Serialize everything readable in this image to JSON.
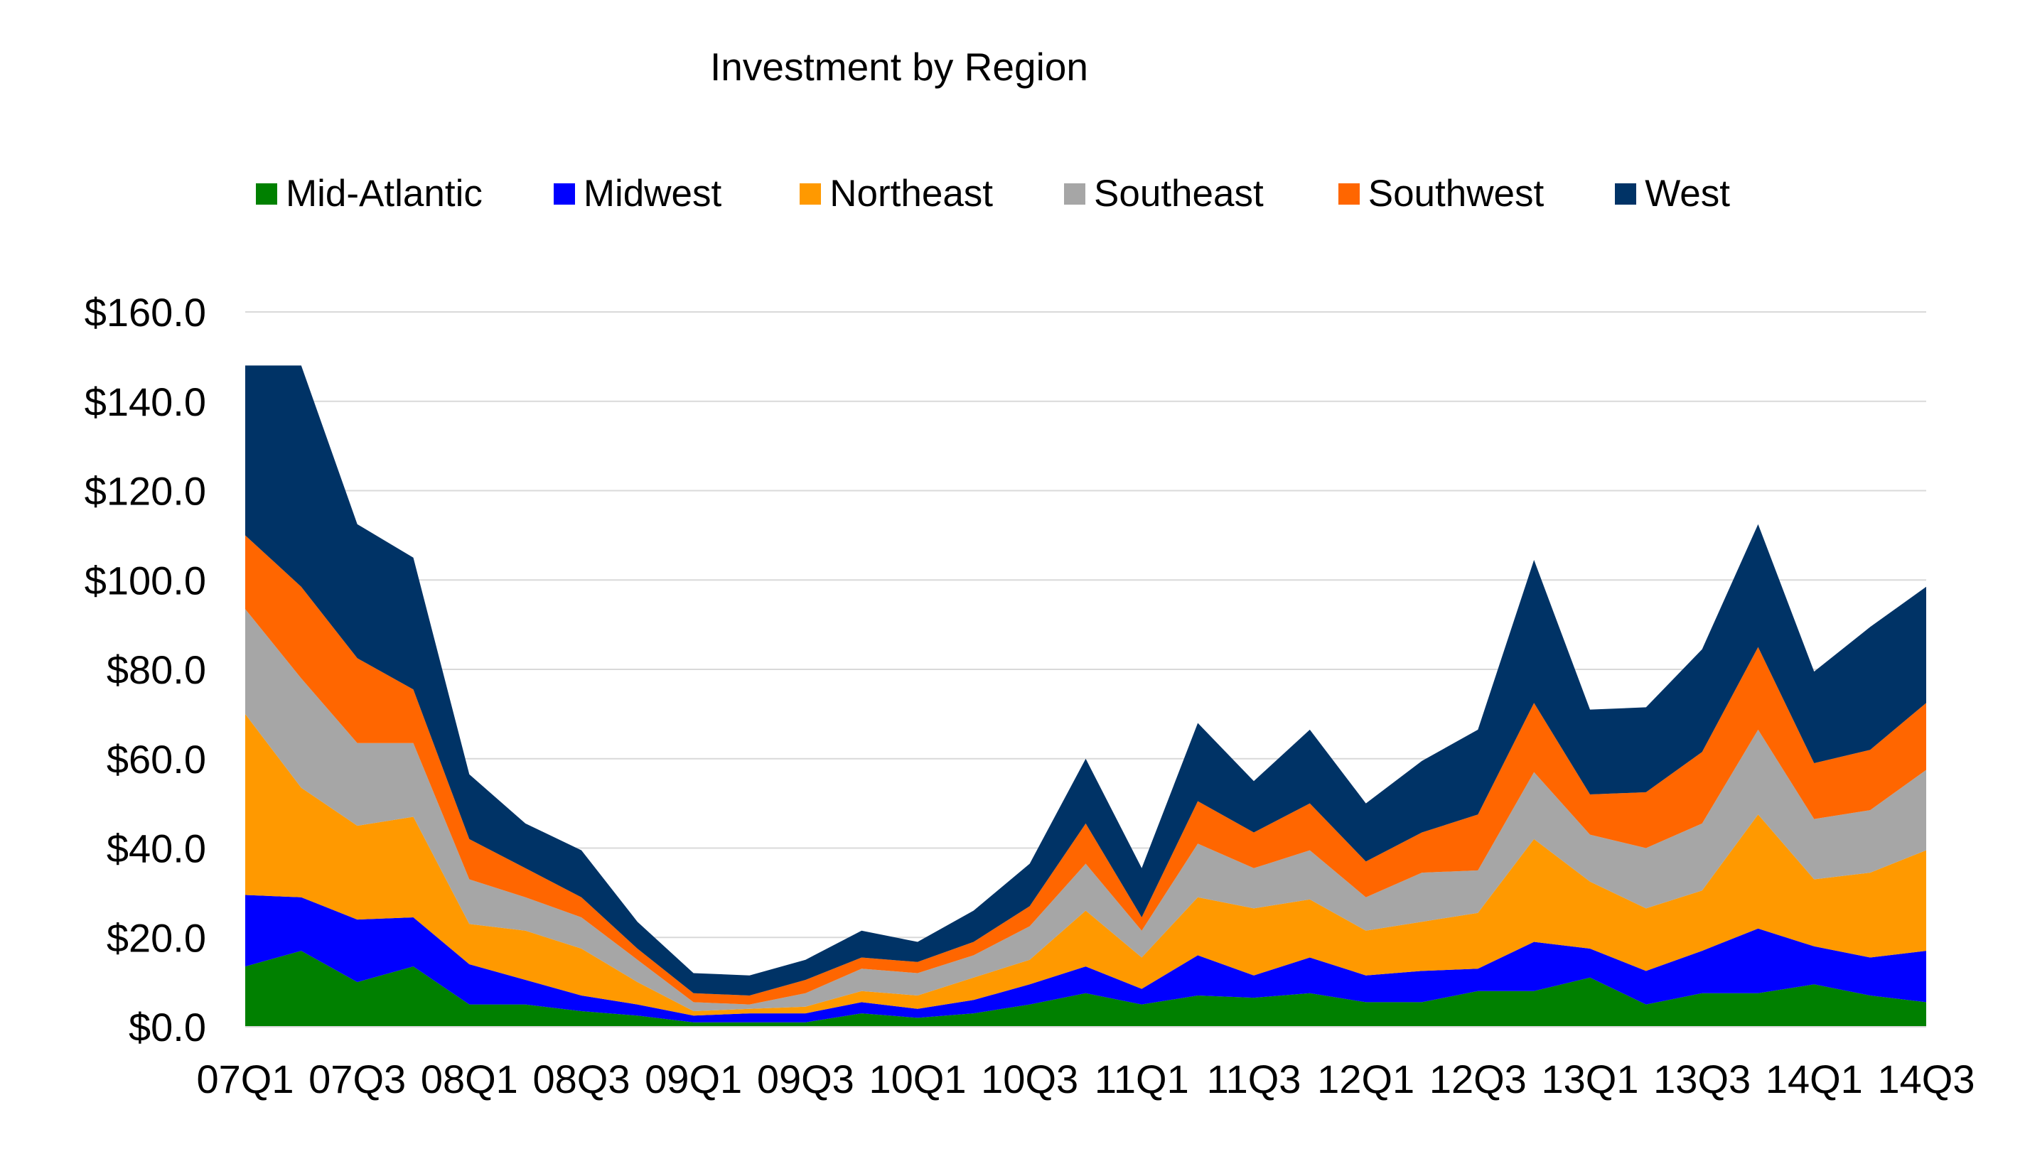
{
  "chart_data": {
    "type": "area",
    "stacked": true,
    "title": "Investment by Region",
    "xlabel": "",
    "ylabel": "",
    "ylim": [
      0,
      160
    ],
    "yticks": [
      "$0.0",
      "$20.0",
      "$40.0",
      "$60.0",
      "$80.0",
      "$100.0",
      "$120.0",
      "$140.0",
      "$160.0"
    ],
    "ytick_values": [
      0,
      20,
      40,
      60,
      80,
      100,
      120,
      140,
      160
    ],
    "grid": true,
    "legend_position": "top",
    "categories": [
      "07Q1",
      "07Q2",
      "07Q3",
      "07Q4",
      "08Q1",
      "08Q2",
      "08Q3",
      "08Q4",
      "09Q1",
      "09Q2",
      "09Q3",
      "09Q4",
      "10Q1",
      "10Q2",
      "10Q3",
      "10Q4",
      "11Q1",
      "11Q2",
      "11Q3",
      "11Q4",
      "12Q1",
      "12Q2",
      "12Q3",
      "12Q4",
      "13Q1",
      "13Q2",
      "13Q3",
      "13Q4",
      "14Q1",
      "14Q2",
      "14Q3"
    ],
    "tick_labels": [
      "07Q1",
      "07Q3",
      "08Q1",
      "08Q3",
      "09Q1",
      "09Q3",
      "10Q1",
      "10Q3",
      "11Q1",
      "11Q3",
      "12Q1",
      "12Q3",
      "13Q1",
      "13Q3",
      "14Q1",
      "14Q3"
    ],
    "series": [
      {
        "name": "Mid-Atlantic",
        "color": "#008000",
        "values": [
          13.5,
          17,
          10,
          13.5,
          5,
          5,
          3.5,
          2.5,
          1,
          1,
          1,
          3,
          2,
          3,
          5,
          7.5,
          5,
          7,
          6.5,
          7.5,
          5.5,
          5.5,
          8,
          8,
          11,
          5,
          7.5,
          7.5,
          9.5,
          7,
          5.5
        ]
      },
      {
        "name": "Midwest",
        "color": "#0000FF",
        "values": [
          16,
          12,
          14,
          11,
          9,
          5.5,
          3.5,
          2.5,
          1.5,
          2,
          2,
          2.5,
          2,
          3,
          4.5,
          6,
          3.5,
          9,
          5,
          8,
          6,
          7,
          5,
          11,
          6.5,
          7.5,
          9.5,
          14.5,
          8.5,
          8.5,
          11.5
        ]
      },
      {
        "name": "Northeast",
        "color": "#FF9900",
        "values": [
          40.5,
          24.5,
          21,
          22.5,
          9,
          11,
          10.5,
          5,
          1,
          1,
          1.5,
          2.5,
          3,
          5,
          5.5,
          12.5,
          7,
          13,
          15,
          13,
          10,
          11,
          12.5,
          23,
          15,
          14,
          13.5,
          25.5,
          15,
          19,
          22.5
        ]
      },
      {
        "name": "Southeast",
        "color": "#A6A6A6",
        "values": [
          23.5,
          24.5,
          18.5,
          16.5,
          10,
          7.5,
          7,
          5,
          2,
          1,
          3,
          5,
          5,
          5,
          7.5,
          10.5,
          6,
          12,
          9,
          11,
          7.5,
          11,
          9.5,
          15,
          10.5,
          13.5,
          15,
          19,
          13.5,
          14,
          18
        ]
      },
      {
        "name": "Southwest",
        "color": "#FF6600",
        "values": [
          16.5,
          20.5,
          19,
          12,
          9,
          6.5,
          4.5,
          2.5,
          2,
          2,
          3,
          2.5,
          2.5,
          3,
          4.5,
          9,
          3,
          9.5,
          8,
          10.5,
          8,
          9,
          12.5,
          15.5,
          9,
          12.5,
          16,
          18.5,
          12.5,
          13.5,
          15
        ]
      },
      {
        "name": "West",
        "color": "#003366",
        "values": [
          38,
          49.5,
          30,
          29.5,
          14.5,
          10,
          10.5,
          6,
          4.5,
          4.5,
          4.5,
          6,
          4.5,
          7,
          9.5,
          14.5,
          11,
          17.5,
          11.5,
          16.5,
          13,
          16,
          19,
          32,
          19,
          19,
          23,
          27.5,
          20.5,
          27.5,
          26
        ]
      }
    ]
  }
}
